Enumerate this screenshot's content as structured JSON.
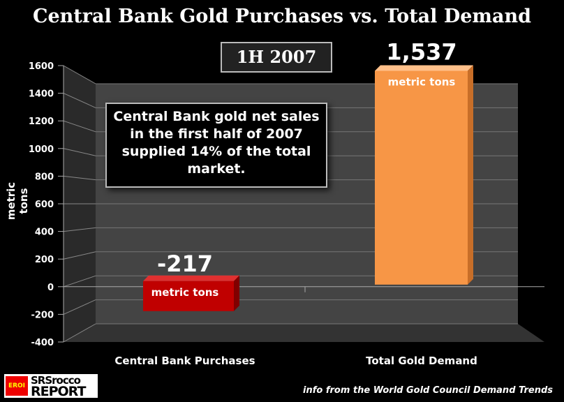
{
  "chart_data": {
    "type": "bar",
    "title": "Central Bank Gold Purchases vs. Total Demand",
    "subtitle": "1H 2007",
    "categories": [
      "Central Bank Purchases",
      "Total Gold Demand"
    ],
    "values": [
      -217,
      1537
    ],
    "data_labels": [
      "-217",
      "1,537"
    ],
    "unit_labels": [
      "metric tons",
      "metric tons"
    ],
    "colors": [
      "#c00000",
      "#f79646"
    ],
    "ylabel": "metric tons",
    "ylim": [
      -400,
      1600
    ],
    "yticks": [
      1600,
      1400,
      1200,
      1000,
      800,
      600,
      400,
      200,
      0,
      -200,
      -400
    ],
    "annotation": "Central Bank gold net sales in the first half of 2007 supplied 14% of the total market.",
    "grid": true
  },
  "source": "info from the World Gold Council Demand Trends",
  "logo": {
    "badge": "EROI",
    "line1": "SRSrocco",
    "line2": "REPORT"
  }
}
